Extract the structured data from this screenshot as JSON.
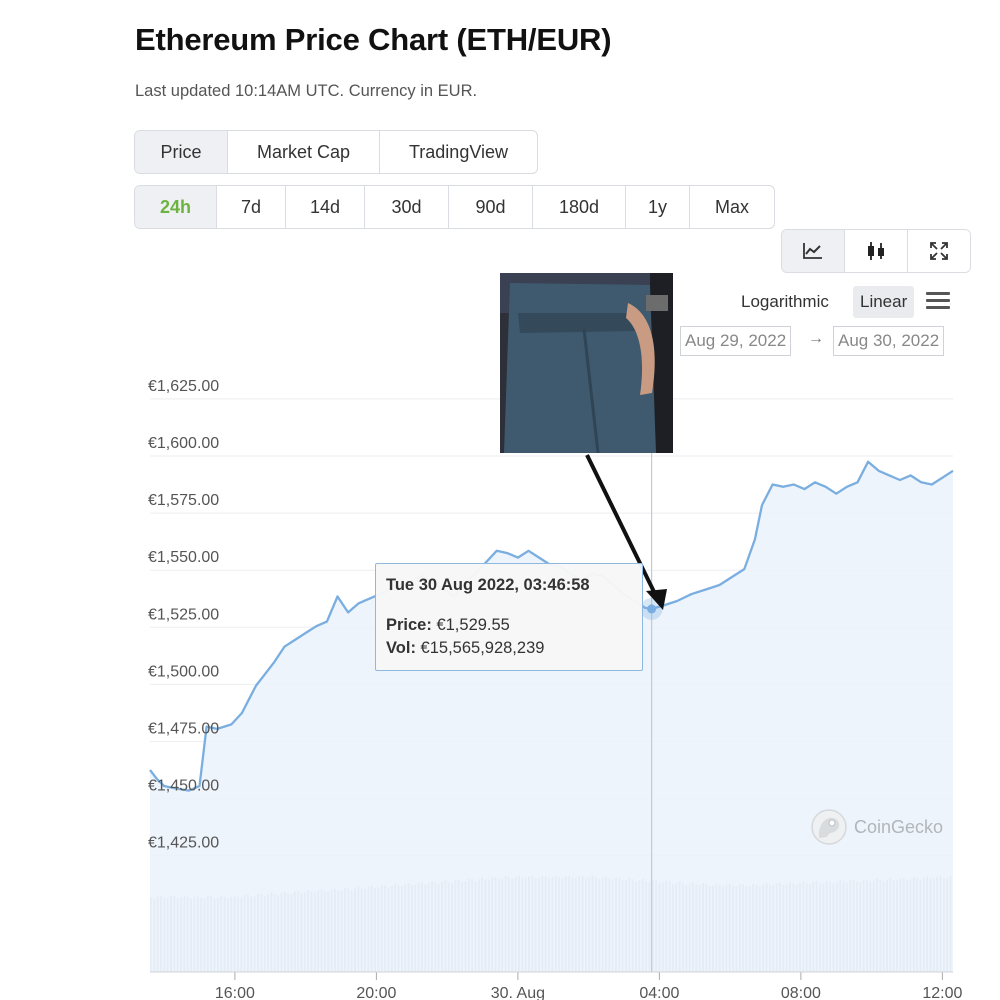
{
  "page": {
    "title": "Ethereum Price Chart (ETH/EUR)",
    "subtitle": "Last updated 10:14AM UTC. Currency in EUR."
  },
  "tabs": [
    {
      "label": "Price",
      "active": true
    },
    {
      "label": "Market Cap",
      "active": false
    },
    {
      "label": "TradingView",
      "active": false
    }
  ],
  "ranges": [
    {
      "label": "24h",
      "active": true
    },
    {
      "label": "7d",
      "active": false
    },
    {
      "label": "14d",
      "active": false
    },
    {
      "label": "30d",
      "active": false
    },
    {
      "label": "90d",
      "active": false
    },
    {
      "label": "180d",
      "active": false
    },
    {
      "label": "1y",
      "active": false
    },
    {
      "label": "Max",
      "active": false
    }
  ],
  "tools": [
    {
      "icon": "line-chart-icon",
      "active": true
    },
    {
      "icon": "candlestick-icon",
      "active": false
    },
    {
      "icon": "fullscreen-icon",
      "active": false
    }
  ],
  "scale": {
    "log_label": "Logarithmic",
    "linear_label": "Linear",
    "selected": "Linear"
  },
  "date_range": {
    "from": "Aug 29, 2022",
    "to": "Aug 30, 2022"
  },
  "tooltip": {
    "heading": "Tue 30 Aug 2022, 03:46:58",
    "price_label": "Price:",
    "price_value": "€1,529.55",
    "vol_label": "Vol:",
    "vol_value": "€15,565,928,239"
  },
  "watermark": {
    "text": "CoinGecko"
  },
  "colors": {
    "line": "#7aaee0",
    "accent_green": "#6db33f",
    "grid": "#eceef1",
    "volume": "#c6c8cc"
  },
  "chart_data": {
    "type": "area",
    "ylabel": "",
    "xlabel": "",
    "ylim": [
      1410,
      1640
    ],
    "y_ticks": [
      {
        "value": 1625,
        "label": "€1,625.00"
      },
      {
        "value": 1600,
        "label": "€1,600.00"
      },
      {
        "value": 1575,
        "label": "€1,575.00"
      },
      {
        "value": 1550,
        "label": "€1,550.00"
      },
      {
        "value": 1525,
        "label": "€1,525.00"
      },
      {
        "value": 1500,
        "label": "€1,500.00"
      },
      {
        "value": 1475,
        "label": "€1,475.00"
      },
      {
        "value": 1450,
        "label": "€1,450.00"
      },
      {
        "value": 1425,
        "label": "€1,425.00"
      }
    ],
    "x_unit": "hours",
    "xlim": [
      13.6,
      12.3
    ],
    "x_ticks": [
      {
        "value": 16,
        "label": "16:00"
      },
      {
        "value": 20,
        "label": "20:00"
      },
      {
        "value": 24,
        "label": "30. Aug"
      },
      {
        "value": 28,
        "label": "04:00"
      },
      {
        "value": 32,
        "label": "08:00"
      },
      {
        "value": 36,
        "label": "12:00"
      }
    ],
    "series": [
      {
        "values": [
          [
            13.6,
            1459
          ],
          [
            13.8,
            1455
          ],
          [
            14.0,
            1452
          ],
          [
            14.3,
            1451
          ],
          [
            14.7,
            1450
          ],
          [
            15.0,
            1452
          ],
          [
            15.2,
            1478
          ],
          [
            15.5,
            1477
          ],
          [
            15.9,
            1479
          ],
          [
            16.2,
            1484
          ],
          [
            16.4,
            1490
          ],
          [
            16.6,
            1496
          ],
          [
            16.8,
            1500
          ],
          [
            17.1,
            1506
          ],
          [
            17.4,
            1513
          ],
          [
            17.7,
            1516
          ],
          [
            18.0,
            1519
          ],
          [
            18.3,
            1522
          ],
          [
            18.6,
            1524
          ],
          [
            18.9,
            1535
          ],
          [
            19.2,
            1528
          ],
          [
            19.5,
            1532
          ],
          [
            19.8,
            1534
          ],
          [
            20.1,
            1536
          ],
          [
            20.4,
            1538
          ],
          [
            20.7,
            1540
          ],
          [
            21.0,
            1542
          ],
          [
            21.3,
            1544
          ],
          [
            21.6,
            1541
          ],
          [
            21.9,
            1538
          ],
          [
            22.2,
            1535
          ],
          [
            22.5,
            1541
          ],
          [
            22.8,
            1545
          ],
          [
            23.1,
            1550
          ],
          [
            23.4,
            1555
          ],
          [
            23.7,
            1554
          ],
          [
            24.0,
            1552
          ],
          [
            24.3,
            1555
          ],
          [
            24.6,
            1552
          ],
          [
            24.9,
            1549
          ],
          [
            25.2,
            1548
          ],
          [
            25.5,
            1545
          ],
          [
            25.8,
            1542
          ],
          [
            26.1,
            1545
          ],
          [
            26.4,
            1544
          ],
          [
            26.7,
            1540
          ],
          [
            27.0,
            1536
          ],
          [
            27.3,
            1533
          ],
          [
            27.6,
            1530
          ],
          [
            27.78,
            1529.55
          ],
          [
            28.1,
            1531
          ],
          [
            28.5,
            1533
          ],
          [
            28.9,
            1536
          ],
          [
            29.3,
            1538
          ],
          [
            29.7,
            1540
          ],
          [
            30.1,
            1544
          ],
          [
            30.4,
            1547
          ],
          [
            30.7,
            1560
          ],
          [
            30.9,
            1575
          ],
          [
            31.2,
            1584
          ],
          [
            31.5,
            1583
          ],
          [
            31.8,
            1584
          ],
          [
            32.1,
            1582
          ],
          [
            32.4,
            1585
          ],
          [
            32.7,
            1583
          ],
          [
            33.0,
            1580
          ],
          [
            33.3,
            1583
          ],
          [
            33.6,
            1585
          ],
          [
            33.9,
            1594
          ],
          [
            34.2,
            1590
          ],
          [
            34.5,
            1588
          ],
          [
            34.8,
            1586
          ],
          [
            35.1,
            1588
          ],
          [
            35.4,
            1585
          ],
          [
            35.7,
            1584
          ],
          [
            36.0,
            1587
          ],
          [
            36.3,
            1590
          ]
        ]
      }
    ],
    "hover": {
      "x": 27.78,
      "y": 1529.55
    },
    "volume": {
      "bar_count": 240,
      "y_min": 1.0,
      "y_max": 1.0
    }
  }
}
